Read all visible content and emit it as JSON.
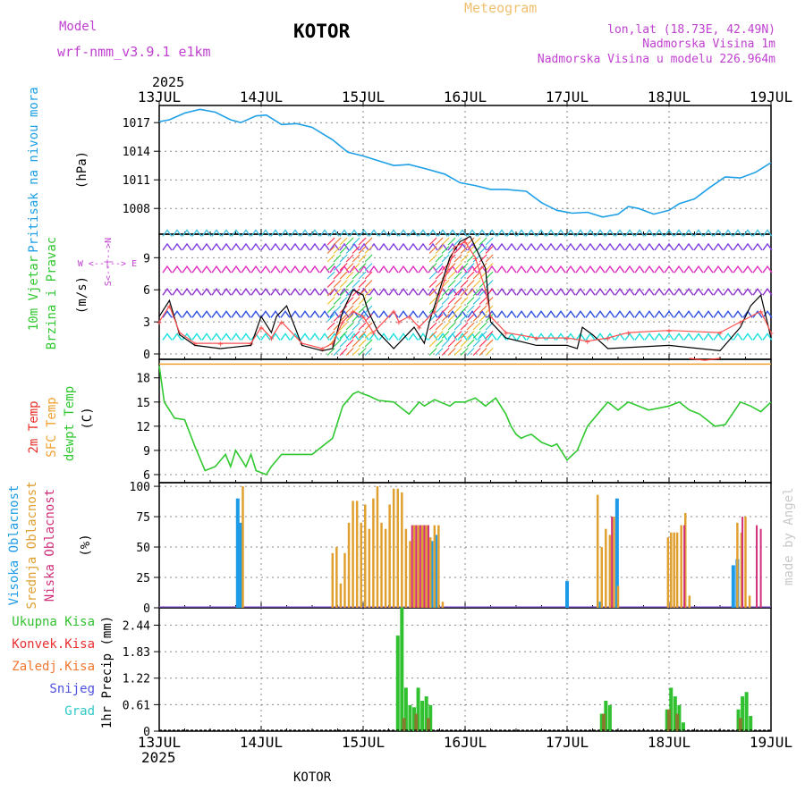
{
  "header": {
    "model_label": "Model",
    "model_name": "wrf-nmm_v3.9.1  e1km",
    "station": "KOTOR",
    "meteogram": "Meteogram",
    "lonlat": "lon,lat (18.73E, 42.49N)",
    "elevation": "Nadmorska Visina 1m",
    "model_elevation": "Nadmorska Visina u modelu 226.964m",
    "year_top": "2025",
    "year_bottom": "2025",
    "footer_station": "KOTOR",
    "watermark": "made by Angel"
  },
  "colors": {
    "pressure": "#1ea0e6",
    "temp2m": "#e8302a",
    "sfc": "#f0a030",
    "dewpt": "#30c830",
    "high_cloud": "#1e9be6",
    "mid_cloud": "#e0a030",
    "low_cloud": "#d0307a",
    "total_precip": "#30c030",
    "conv_precip": "#e83030",
    "frozen_precip": "#f07830",
    "snow": "#5050e0",
    "grad": "#30c8c8",
    "wind_speed": "#000000",
    "wind_gust": "#ff5050",
    "purple_label": "#c040d0"
  },
  "x_axis": {
    "ticks": [
      "13JUL",
      "14JUL",
      "15JUL",
      "16JUL",
      "17JUL",
      "18JUL",
      "19JUL"
    ],
    "range_days": [
      0,
      6
    ]
  },
  "chart_data": [
    {
      "id": "pressure",
      "type": "line",
      "ylabel_main": "Pritisak na nivou mora",
      "ylabel_unit": "(hPa)",
      "yticks": [
        1008,
        1011,
        1014,
        1017
      ],
      "ylim": [
        1005.3,
        1018.8
      ],
      "series": [
        {
          "x": [
            0,
            0.1,
            0.25,
            0.4,
            0.55,
            0.7,
            0.8,
            0.95,
            1.05,
            1.2,
            1.35,
            1.5,
            1.7,
            1.85,
            2.0,
            2.15,
            2.3,
            2.45,
            2.6,
            2.8,
            2.95,
            3.1,
            3.25,
            3.4,
            3.6,
            3.75,
            3.9,
            4.05,
            4.2,
            4.35,
            4.5,
            4.6,
            4.7,
            4.85,
            5.0,
            5.1,
            5.25,
            5.4,
            5.55,
            5.7,
            5.85,
            6.0
          ],
          "y": [
            1017.1,
            1017.3,
            1018.0,
            1018.4,
            1018.1,
            1017.3,
            1017.0,
            1017.7,
            1017.8,
            1016.8,
            1016.9,
            1016.5,
            1015.2,
            1013.9,
            1013.5,
            1013.0,
            1012.5,
            1012.6,
            1012.2,
            1011.6,
            1010.7,
            1010.4,
            1010.0,
            1010.0,
            1009.8,
            1008.6,
            1007.8,
            1007.5,
            1007.6,
            1007.1,
            1007.4,
            1008.2,
            1008.0,
            1007.4,
            1007.8,
            1008.5,
            1009.0,
            1010.2,
            1011.3,
            1011.2,
            1011.8,
            1012.8
          ]
        }
      ]
    },
    {
      "id": "wind",
      "type": "line",
      "ylabel_main": "10m Vjetar",
      "ylabel_sub": "Brzina i Pravac",
      "ylabel_unit": "(m/s)",
      "compass": "W <--|--> E",
      "compass_side": "S<--|-->N",
      "yticks": [
        0,
        3,
        6,
        9
      ],
      "ylim": [
        -0.5,
        11.2
      ],
      "barb_levels": [
        1.3,
        3.4,
        5.5,
        7.6,
        9.7,
        11.0
      ],
      "barb_colors": [
        "#1ee0e0",
        "#3050e0",
        "#9030d0",
        "#e030c0",
        "#8040e0",
        "#40c0e0"
      ],
      "arrow_blocks": [
        [
          1.65,
          2.05
        ],
        [
          2.65,
          3.25
        ]
      ],
      "series": [
        {
          "name_ref": "speed",
          "x": [
            0,
            0.1,
            0.2,
            0.35,
            0.6,
            0.9,
            1.0,
            1.1,
            1.15,
            1.25,
            1.4,
            1.6,
            1.7,
            1.8,
            1.9,
            2.0,
            2.05,
            2.15,
            2.3,
            2.4,
            2.5,
            2.6,
            2.65,
            2.75,
            2.85,
            2.95,
            3.05,
            3.1,
            3.2,
            3.25,
            3.4,
            3.7,
            4.0,
            4.1,
            4.15,
            4.25,
            4.4,
            5.0,
            5.5,
            5.7,
            5.8,
            5.9,
            6.0
          ],
          "y": [
            3.5,
            5.0,
            1.8,
            0.8,
            0.5,
            0.8,
            3.5,
            2.0,
            3.5,
            4.5,
            0.8,
            0.3,
            0.5,
            4.0,
            6.0,
            5.5,
            4.0,
            2.0,
            0.5,
            1.5,
            2.5,
            1.0,
            3.0,
            6.0,
            9.0,
            10.5,
            11.0,
            10.0,
            8.0,
            3.0,
            1.5,
            0.8,
            0.8,
            0.5,
            2.5,
            1.8,
            0.5,
            0.8,
            0.3,
            2.5,
            4.5,
            5.5,
            1.5
          ]
        },
        {
          "name_ref": "gust",
          "x": [
            0,
            0.1,
            0.2,
            0.35,
            0.6,
            0.9,
            1.0,
            1.1,
            1.2,
            1.4,
            1.6,
            1.7,
            1.8,
            1.9,
            2.0,
            2.1,
            2.3,
            2.35,
            2.45,
            2.55,
            2.7,
            2.8,
            2.9,
            3.0,
            3.1,
            3.2,
            3.25,
            3.4,
            3.7,
            4.0,
            4.2,
            4.4,
            4.6,
            5.0,
            5.5,
            5.7,
            5.9,
            6.0
          ],
          "y": [
            3.0,
            4.5,
            2.0,
            1.0,
            1.0,
            1.0,
            2.5,
            1.5,
            3.0,
            1.0,
            0.5,
            1.0,
            3.0,
            4.0,
            3.5,
            2.0,
            4.0,
            3.0,
            3.5,
            2.5,
            4.0,
            7.0,
            10.0,
            10.5,
            9.0,
            6.0,
            3.5,
            2.0,
            1.5,
            1.5,
            1.2,
            1.5,
            2.0,
            2.2,
            2.0,
            3.0,
            4.0,
            2.0
          ]
        }
      ]
    },
    {
      "id": "temperature",
      "type": "line",
      "ylabel_main": "2m Temp",
      "ylabel_sub": "SFC Temp",
      "ylabel_sub2": "dewpt Temp",
      "ylabel_unit": "(C)",
      "yticks": [
        6,
        9,
        12,
        15,
        18
      ],
      "ylim": [
        5,
        20.3
      ],
      "sfc_line_value": 19.7,
      "temp2m_short": {
        "x": [
          5.2,
          5.35,
          5.5
        ],
        "y": [
          20.4,
          20.2,
          20.4
        ]
      },
      "series": [
        {
          "name_ref": "dewpt",
          "x": [
            0,
            0.05,
            0.15,
            0.25,
            0.35,
            0.45,
            0.55,
            0.65,
            0.7,
            0.75,
            0.85,
            0.9,
            0.95,
            1.05,
            1.1,
            1.2,
            1.35,
            1.5,
            1.6,
            1.7,
            1.8,
            1.9,
            1.95,
            2.0,
            2.05,
            2.15,
            2.3,
            2.45,
            2.55,
            2.6,
            2.7,
            2.85,
            2.9,
            3.0,
            3.1,
            3.2,
            3.3,
            3.4,
            3.45,
            3.5,
            3.55,
            3.6,
            3.65,
            3.75,
            3.85,
            3.9,
            4.0,
            4.1,
            4.2,
            4.3,
            4.4,
            4.5,
            4.6,
            4.7,
            4.8,
            5.0,
            5.1,
            5.2,
            5.3,
            5.4,
            5.45,
            5.55,
            5.7,
            5.8,
            5.9,
            6.0
          ],
          "y": [
            19.5,
            15.0,
            13.0,
            12.8,
            9.5,
            6.5,
            7.0,
            8.5,
            7.0,
            9.0,
            7.0,
            8.5,
            6.5,
            6.0,
            7.0,
            8.5,
            8.5,
            8.5,
            9.5,
            10.5,
            14.5,
            16.0,
            16.3,
            16.0,
            15.8,
            15.2,
            15.0,
            13.5,
            15.0,
            14.5,
            15.3,
            14.5,
            15.0,
            15.0,
            15.5,
            14.5,
            15.5,
            13.5,
            12.0,
            11.0,
            10.5,
            10.8,
            11.0,
            10.0,
            9.5,
            9.8,
            7.8,
            9.0,
            12.0,
            13.5,
            15.0,
            14.0,
            15.0,
            14.5,
            14.0,
            14.5,
            15.0,
            14.0,
            13.5,
            12.5,
            12.0,
            12.2,
            15.0,
            14.5,
            13.8,
            15.0
          ]
        }
      ]
    },
    {
      "id": "clouds",
      "type": "bar",
      "ylabel_main": "Visoka Oblacnost",
      "ylabel_sub": "Srednja Oblacnost",
      "ylabel_sub2": "Niska Oblacnost",
      "ylabel_unit": "(%)",
      "yticks": [
        0,
        25,
        50,
        75,
        100
      ],
      "ylim": [
        0,
        103
      ],
      "series": [
        {
          "name_ref": "high",
          "x": [
            0.77,
            0.8,
            2.67,
            2.71,
            4.0,
            4.33,
            4.49,
            5.63,
            5.67
          ],
          "values": [
            90,
            70,
            55,
            60,
            22,
            5,
            90,
            35,
            40
          ]
        },
        {
          "name_ref": "mid",
          "x": [
            0.82,
            1.7,
            1.74,
            1.78,
            1.82,
            1.86,
            1.9,
            1.94,
            1.98,
            2.02,
            2.06,
            2.1,
            2.14,
            2.18,
            2.22,
            2.26,
            2.3,
            2.34,
            2.38,
            2.42,
            2.46,
            2.5,
            2.54,
            2.58,
            2.62,
            2.66,
            2.7,
            2.74,
            2.78,
            4.3,
            4.34,
            4.38,
            4.42,
            4.46,
            4.5,
            4.99,
            5.02,
            5.05,
            5.08,
            5.12,
            5.16,
            5.2,
            5.67,
            5.71,
            5.75,
            5.79
          ],
          "values": [
            100,
            45,
            50,
            20,
            45,
            70,
            88,
            88,
            70,
            85,
            65,
            90,
            100,
            70,
            65,
            85,
            98,
            98,
            95,
            65,
            55,
            68,
            68,
            68,
            68,
            58,
            68,
            68,
            5,
            93,
            50,
            65,
            60,
            75,
            18,
            58,
            62,
            62,
            62,
            68,
            78,
            10,
            70,
            62,
            75,
            10
          ]
        },
        {
          "name_ref": "low",
          "x": [
            2.48,
            2.52,
            2.56,
            2.6,
            2.64,
            4.44,
            5.15,
            5.72,
            5.86,
            5.9
          ],
          "values": [
            68,
            68,
            68,
            68,
            68,
            75,
            68,
            75,
            68,
            65
          ]
        }
      ]
    },
    {
      "id": "precip",
      "type": "bar",
      "ylabel_main": "Ukupna Kisa",
      "ylabel_sub": "Konvek.Kisa",
      "ylabel_sub2": "Zaledj.Kisa",
      "ylabel_sub3": "Snijeg",
      "ylabel_sub4": "Grad",
      "ylabel_unit": "1hr Precip (mm)",
      "yticks": [
        "0",
        "0.61",
        "1.22",
        "1.83",
        "2.44"
      ],
      "yticks_values": [
        0,
        0.61,
        1.22,
        1.83,
        2.44
      ],
      "ylim": [
        0,
        2.84
      ],
      "series": [
        {
          "name_ref": "total",
          "x": [
            2.34,
            2.38,
            2.42,
            2.46,
            2.5,
            2.54,
            2.58,
            2.62,
            2.66,
            4.34,
            4.38,
            4.42,
            4.98,
            5.02,
            5.06,
            5.1,
            5.14,
            5.68,
            5.72,
            5.76,
            5.8
          ],
          "values": [
            2.2,
            2.85,
            1.0,
            0.6,
            0.55,
            1.0,
            0.7,
            0.8,
            0.6,
            0.4,
            0.7,
            0.6,
            0.5,
            1.0,
            0.8,
            0.6,
            0.2,
            0.5,
            0.8,
            0.9,
            0.35
          ]
        },
        {
          "name_ref": "frozen",
          "x": [
            2.4,
            2.52,
            2.64,
            4.36,
            5.0,
            5.08,
            5.7
          ],
          "values": [
            0.3,
            0.4,
            0.3,
            0.4,
            0.5,
            0.4,
            0.3
          ]
        }
      ]
    }
  ]
}
